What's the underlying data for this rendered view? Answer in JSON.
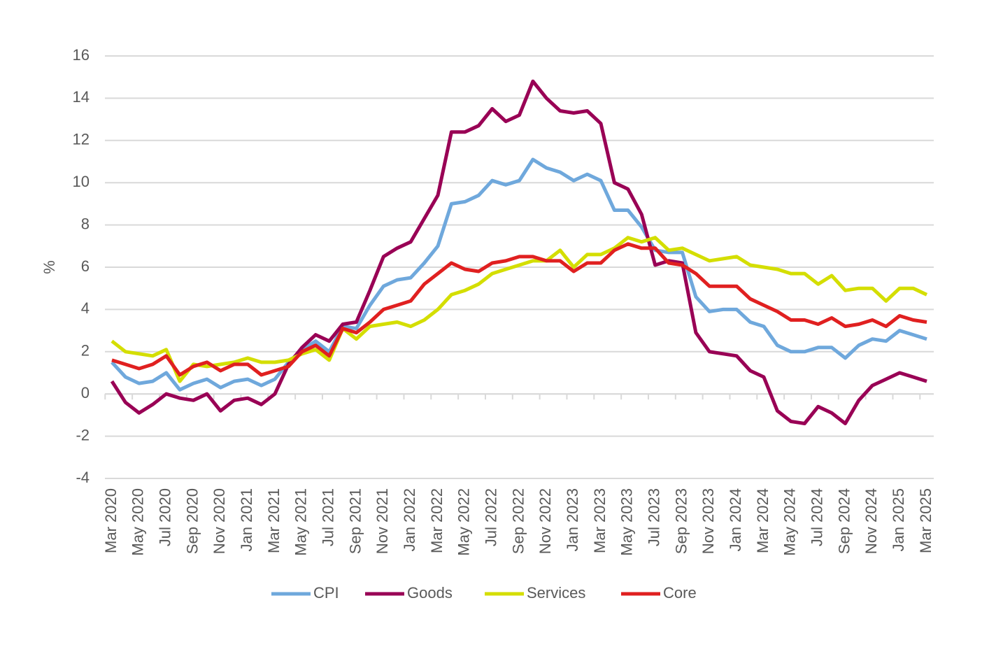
{
  "chart_data": {
    "type": "line",
    "ylabel": "%",
    "categories": [
      "Mar 2020",
      null,
      "May 2020",
      null,
      "Jul 2020",
      null,
      "Sep 2020",
      null,
      "Nov 2020",
      null,
      "Jan 2021",
      null,
      "Mar 2021",
      null,
      "May 2021",
      null,
      "Jul 2021",
      null,
      "Sep 2021",
      null,
      "Nov 2021",
      null,
      "Jan 2022",
      null,
      "Mar 2022",
      null,
      "May 2022",
      null,
      "Jul 2022",
      null,
      "Sep 2022",
      null,
      "Nov 2022",
      null,
      "Jan 2023",
      null,
      "Mar 2023",
      null,
      "May 2023",
      null,
      "Jul 2023",
      null,
      "Sep 2023",
      null,
      "Nov 2023",
      null,
      "Jan 2024",
      null,
      "Mar 2024",
      null,
      "May 2024",
      null,
      "Jul 2024",
      null,
      "Sep 2024",
      null,
      "Nov 2024",
      null,
      "Jan 2025",
      null,
      "Mar 2025"
    ],
    "series": [
      {
        "name": "CPI",
        "color": "#6fa8dc",
        "values": [
          1.5,
          0.8,
          0.5,
          0.6,
          1.0,
          0.2,
          0.5,
          0.7,
          0.3,
          0.6,
          0.7,
          0.4,
          0.7,
          1.5,
          2.1,
          2.5,
          2.0,
          3.2,
          3.1,
          4.2,
          5.1,
          5.4,
          5.5,
          6.2,
          7.0,
          9.0,
          9.1,
          9.4,
          10.1,
          9.9,
          10.1,
          11.1,
          10.7,
          10.5,
          10.1,
          10.4,
          10.1,
          8.7,
          8.7,
          7.9,
          6.8,
          6.7,
          6.7,
          4.6,
          3.9,
          4.0,
          4.0,
          3.4,
          3.2,
          2.3,
          2.0,
          2.0,
          2.2,
          2.2,
          1.7,
          2.3,
          2.6,
          2.5,
          3.0,
          2.8,
          2.6
        ]
      },
      {
        "name": "Goods",
        "color": "#990055",
        "values": [
          0.6,
          -0.4,
          -0.9,
          -0.5,
          0.0,
          -0.2,
          -0.3,
          0.0,
          -0.8,
          -0.3,
          -0.2,
          -0.5,
          0.0,
          1.4,
          2.2,
          2.8,
          2.5,
          3.3,
          3.4,
          4.9,
          6.5,
          6.9,
          7.2,
          8.3,
          9.4,
          12.4,
          12.4,
          12.7,
          13.5,
          12.9,
          13.2,
          14.8,
          14.0,
          13.4,
          13.3,
          13.4,
          12.8,
          10.0,
          9.7,
          8.5,
          6.1,
          6.3,
          6.2,
          2.9,
          2.0,
          1.9,
          1.8,
          1.1,
          0.8,
          -0.8,
          -1.3,
          -1.4,
          -0.6,
          -0.9,
          -1.4,
          -0.3,
          0.4,
          0.7,
          1.0,
          0.8,
          0.6
        ]
      },
      {
        "name": "Services",
        "color": "#d4de00",
        "values": [
          2.5,
          2.0,
          1.9,
          1.8,
          2.1,
          0.6,
          1.4,
          1.3,
          1.4,
          1.5,
          1.7,
          1.5,
          1.5,
          1.6,
          1.9,
          2.1,
          1.6,
          3.1,
          2.6,
          3.2,
          3.3,
          3.4,
          3.2,
          3.5,
          4.0,
          4.7,
          4.9,
          5.2,
          5.7,
          5.9,
          6.1,
          6.3,
          6.3,
          6.8,
          6.0,
          6.6,
          6.6,
          6.9,
          7.4,
          7.2,
          7.4,
          6.8,
          6.9,
          6.6,
          6.3,
          6.4,
          6.5,
          6.1,
          6.0,
          5.9,
          5.7,
          5.7,
          5.2,
          5.6,
          4.9,
          5.0,
          5.0,
          4.4,
          5.0,
          5.0,
          4.7
        ]
      },
      {
        "name": "Core",
        "color": "#e02020",
        "values": [
          1.6,
          1.4,
          1.2,
          1.4,
          1.8,
          0.9,
          1.3,
          1.5,
          1.1,
          1.4,
          1.4,
          0.9,
          1.1,
          1.3,
          2.0,
          2.3,
          1.8,
          3.1,
          2.9,
          3.4,
          4.0,
          4.2,
          4.4,
          5.2,
          5.7,
          6.2,
          5.9,
          5.8,
          6.2,
          6.3,
          6.5,
          6.5,
          6.3,
          6.3,
          5.8,
          6.2,
          6.2,
          6.8,
          7.1,
          6.9,
          6.9,
          6.2,
          6.1,
          5.7,
          5.1,
          5.1,
          5.1,
          4.5,
          4.2,
          3.9,
          3.5,
          3.5,
          3.3,
          3.6,
          3.2,
          3.3,
          3.5,
          3.2,
          3.7,
          3.5,
          3.4
        ]
      }
    ],
    "ylim": [
      -4,
      16
    ],
    "yticks": [
      -4,
      -2,
      0,
      2,
      4,
      6,
      8,
      10,
      12,
      14,
      16
    ],
    "grid": true,
    "legend": "bottom"
  }
}
